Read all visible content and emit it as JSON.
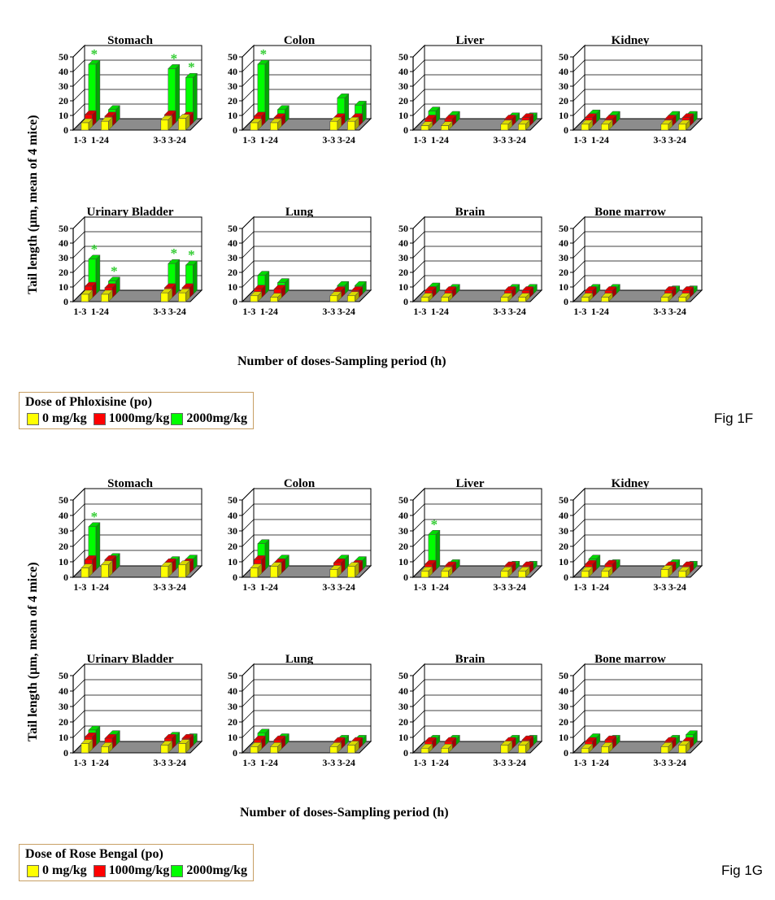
{
  "figures": [
    {
      "figure_label": "Fig 1F",
      "y_axis_label": "Tail length (µm, mean of 4 mice)",
      "x_axis_label": "Number of doses-Sampling period (h)",
      "legend": {
        "title": "Dose of Phloxisine (po)",
        "items": [
          {
            "label": "0 mg/kg",
            "color": "#ffff00"
          },
          {
            "label": "1000mg/kg",
            "color": "#ff0000"
          },
          {
            "label": "2000mg/kg",
            "color": "#00ff00"
          }
        ]
      }
    },
    {
      "figure_label": "Fig 1G",
      "y_axis_label": "Tail length (µm, mean of 4 mice)",
      "x_axis_label": "Number of doses-Sampling period (h)",
      "legend": {
        "title": "Dose of Rose Bengal (po)",
        "items": [
          {
            "label": "0 mg/kg",
            "color": "#ffff00"
          },
          {
            "label": "1000mg/kg",
            "color": "#ff0000"
          },
          {
            "label": "2000mg/kg",
            "color": "#00ff00"
          }
        ]
      }
    }
  ],
  "chart_data": [
    {
      "figure": "Fig 1F",
      "type": "bar",
      "title": "Stomach",
      "categories": [
        "1-3",
        "1-24",
        "3-3",
        "3-24"
      ],
      "ylim": [
        0,
        50
      ],
      "yticks": [
        0,
        10,
        20,
        30,
        40,
        50
      ],
      "series": [
        {
          "name": "0 mg/kg",
          "values": [
            5,
            6,
            7,
            8
          ]
        },
        {
          "name": "1000mg/kg",
          "values": [
            8,
            7,
            8,
            7
          ]
        },
        {
          "name": "2000mg/kg",
          "values": [
            40,
            9,
            37,
            31
          ]
        }
      ],
      "significant": [
        [
          2,
          0
        ],
        [
          2,
          2
        ],
        [
          2,
          3
        ]
      ],
      "annotation": "*"
    },
    {
      "figure": "Fig 1F",
      "type": "bar",
      "title": "Colon",
      "categories": [
        "1-3",
        "1-24",
        "3-3",
        "3-24"
      ],
      "ylim": [
        0,
        50
      ],
      "yticks": [
        0,
        10,
        "20",
        30,
        40,
        50
      ],
      "series": [
        {
          "name": "0 mg/kg",
          "values": [
            5,
            5,
            6,
            6
          ]
        },
        {
          "name": "1000mg/kg",
          "values": [
            7,
            6,
            6,
            6
          ]
        },
        {
          "name": "2000mg/kg",
          "values": [
            40,
            9,
            17,
            12
          ]
        }
      ],
      "significant": [
        [
          2,
          0
        ]
      ],
      "annotation": "*"
    },
    {
      "figure": "Fig 1F",
      "type": "bar",
      "title": "Liver",
      "categories": [
        "1-3",
        "1-24",
        "3-3",
        "3-24"
      ],
      "ylim": [
        0,
        50
      ],
      "yticks": [
        0,
        10,
        20,
        30,
        40,
        50
      ],
      "series": [
        {
          "name": "0 mg/kg",
          "values": [
            3,
            3,
            4,
            4
          ]
        },
        {
          "name": "1000mg/kg",
          "values": [
            5,
            5,
            5,
            6
          ]
        },
        {
          "name": "2000mg/kg",
          "values": [
            8,
            5,
            4,
            4
          ]
        }
      ]
    },
    {
      "figure": "Fig 1F",
      "type": "bar",
      "title": "Kidney",
      "categories": [
        "1-3",
        "1-24",
        "3-3",
        "3-24"
      ],
      "ylim": [
        0,
        50
      ],
      "yticks": [
        "0",
        10,
        20,
        30,
        40,
        50
      ],
      "series": [
        {
          "name": "0 mg/kg",
          "values": [
            4,
            4,
            4,
            4
          ]
        },
        {
          "name": "1000mg/kg",
          "values": [
            6,
            5,
            5,
            6
          ]
        },
        {
          "name": "2000mg/kg",
          "values": [
            6,
            5,
            5,
            5
          ]
        }
      ]
    },
    {
      "figure": "Fig 1F",
      "type": "bar",
      "title": "Urinary Bladder",
      "categories": [
        "1-3",
        "1-24",
        "3-3",
        "3-24"
      ],
      "ylim": [
        0,
        50
      ],
      "yticks": [
        0,
        10,
        20,
        30,
        40,
        50
      ],
      "series": [
        {
          "name": "0 mg/kg",
          "values": [
            5,
            5,
            6,
            6
          ]
        },
        {
          "name": "1000mg/kg",
          "values": [
            8,
            7,
            7,
            7
          ]
        },
        {
          "name": "2000mg/kg",
          "values": [
            24,
            9,
            21,
            20
          ]
        }
      ],
      "significant": [
        [
          2,
          0
        ],
        [
          2,
          1
        ],
        [
          2,
          2
        ],
        [
          2,
          3
        ]
      ],
      "annotation": "*"
    },
    {
      "figure": "Fig 1F",
      "type": "bar",
      "title": "Lung",
      "categories": [
        "1-3",
        "1-24",
        "3-3",
        "3-24"
      ],
      "ylim": [
        0,
        50
      ],
      "yticks": [
        0,
        10,
        20,
        30,
        40,
        50
      ],
      "series": [
        {
          "name": "0 mg/kg",
          "values": [
            4,
            3,
            4,
            4
          ]
        },
        {
          "name": "1000mg/kg",
          "values": [
            6,
            6,
            5,
            5
          ]
        },
        {
          "name": "2000mg/kg",
          "values": [
            13,
            8,
            6,
            6
          ]
        }
      ]
    },
    {
      "figure": "Fig 1F",
      "type": "bar",
      "title": "Brain",
      "categories": [
        "1-3",
        "1-24",
        "3-3",
        "3-24"
      ],
      "ylim": [
        0,
        50
      ],
      "yticks": [
        0,
        10,
        20,
        30,
        40,
        50
      ],
      "series": [
        {
          "name": "0 mg/kg",
          "values": [
            3,
            3,
            3,
            3
          ]
        },
        {
          "name": "1000mg/kg",
          "values": [
            5,
            5,
            5,
            5
          ]
        },
        {
          "name": "2000mg/kg",
          "values": [
            5,
            4,
            4,
            4
          ]
        }
      ]
    },
    {
      "figure": "Fig 1F",
      "type": "bar",
      "title": "Bone marrow",
      "categories": [
        "1-3",
        "1-24",
        "3-3",
        "3-24"
      ],
      "ylim": [
        0,
        50
      ],
      "yticks": [
        0,
        10,
        20,
        30,
        40,
        50
      ],
      "series": [
        {
          "name": "0 mg/kg",
          "values": [
            3,
            3,
            3,
            3
          ]
        },
        {
          "name": "1000mg/kg",
          "values": [
            5,
            5,
            5,
            5
          ]
        },
        {
          "name": "2000mg/kg",
          "values": [
            4,
            4,
            3,
            3
          ]
        }
      ]
    },
    {
      "figure": "Fig 1G",
      "type": "bar",
      "title": "Stomach",
      "categories": [
        "1-3",
        "1-24",
        "3-3",
        "3-24"
      ],
      "ylim": [
        0,
        50
      ],
      "yticks": [
        0,
        10,
        20,
        30,
        40,
        50
      ],
      "series": [
        {
          "name": "0 mg/kg",
          "values": [
            6,
            8,
            7,
            8
          ]
        },
        {
          "name": "1000mg/kg",
          "values": [
            9,
            9,
            7,
            7
          ]
        },
        {
          "name": "2000mg/kg",
          "values": [
            28,
            8,
            6,
            7
          ]
        }
      ],
      "significant": [
        [
          2,
          0
        ]
      ],
      "annotation": "*"
    },
    {
      "figure": "Fig 1G",
      "type": "bar",
      "title": "Colon",
      "categories": [
        "1-3",
        "1-24",
        "3-3",
        "3-24"
      ],
      "ylim": [
        0,
        50
      ],
      "yticks": [
        0,
        10,
        20,
        30,
        40,
        50
      ],
      "series": [
        {
          "name": "0 mg/kg",
          "values": [
            6,
            7,
            5,
            7
          ]
        },
        {
          "name": "1000mg/kg",
          "values": [
            9,
            7,
            7,
            6
          ]
        },
        {
          "name": "2000mg/kg",
          "values": [
            17,
            7,
            7,
            6
          ]
        }
      ]
    },
    {
      "figure": "Fig 1G",
      "type": "bar",
      "title": "Liver",
      "categories": [
        "1-3",
        "1-24",
        "3-3",
        "3-24"
      ],
      "ylim": [
        0,
        50
      ],
      "yticks": [
        0,
        10,
        20,
        30,
        40,
        50
      ],
      "series": [
        {
          "name": "0 mg/kg",
          "values": [
            4,
            4,
            4,
            4
          ]
        },
        {
          "name": "1000mg/kg",
          "values": [
            6,
            5,
            5,
            5
          ]
        },
        {
          "name": "2000mg/kg",
          "values": [
            23,
            4,
            3,
            3
          ]
        }
      ],
      "significant": [
        [
          2,
          0
        ]
      ],
      "annotation": "*"
    },
    {
      "figure": "Fig 1G",
      "type": "bar",
      "title": "Kidney",
      "categories": [
        "1-3",
        "1-24",
        "3-3",
        "3-24"
      ],
      "ylim": [
        0,
        50
      ],
      "yticks": [
        0,
        10,
        20,
        30,
        40,
        50
      ],
      "series": [
        {
          "name": "0 mg/kg",
          "values": [
            4,
            4,
            5,
            4
          ]
        },
        {
          "name": "1000mg/kg",
          "values": [
            6,
            6,
            5,
            5
          ]
        },
        {
          "name": "2000mg/kg",
          "values": [
            7,
            4,
            4,
            3
          ]
        }
      ]
    },
    {
      "figure": "Fig 1G",
      "type": "bar",
      "title": "Urinary Bladder",
      "categories": [
        "1-3",
        "1-24",
        "3-3",
        "3-24"
      ],
      "ylim": [
        0,
        50
      ],
      "yticks": [
        0,
        10,
        20,
        30,
        40,
        50
      ],
      "series": [
        {
          "name": "0 mg/kg",
          "values": [
            6,
            4,
            5,
            6
          ]
        },
        {
          "name": "1000mg/kg",
          "values": [
            8,
            7,
            7,
            7
          ]
        },
        {
          "name": "2000mg/kg",
          "values": [
            10,
            7,
            6,
            5
          ]
        }
      ]
    },
    {
      "figure": "Fig 1G",
      "type": "bar",
      "title": "Lung",
      "categories": [
        "1-3",
        "1-24",
        "3-3",
        "3-24"
      ],
      "ylim": [
        0,
        50
      ],
      "yticks": [
        0,
        10,
        20,
        30,
        40,
        50
      ],
      "series": [
        {
          "name": "0 mg/kg",
          "values": [
            4,
            4,
            4,
            5
          ]
        },
        {
          "name": "1000mg/kg",
          "values": [
            6,
            6,
            5,
            5
          ]
        },
        {
          "name": "2000mg/kg",
          "values": [
            8,
            5,
            4,
            4
          ]
        }
      ]
    },
    {
      "figure": "Fig 1G",
      "type": "bar",
      "title": "Brain",
      "categories": [
        "1-3",
        "1-24",
        "3-3",
        "3-24"
      ],
      "ylim": [
        0,
        50
      ],
      "yticks": [
        0,
        10,
        20,
        30,
        40,
        50
      ],
      "series": [
        {
          "name": "0 mg/kg",
          "values": [
            3,
            3,
            5,
            5
          ]
        },
        {
          "name": "1000mg/kg",
          "values": [
            5,
            5,
            5,
            6
          ]
        },
        {
          "name": "2000mg/kg",
          "values": [
            4,
            4,
            4,
            4
          ]
        }
      ]
    },
    {
      "figure": "Fig 1G",
      "type": "bar",
      "title": "Bone marrow",
      "categories": [
        "1-3",
        "1-24",
        "3-3",
        "3-24"
      ],
      "ylim": [
        0,
        50
      ],
      "yticks": [
        0,
        10,
        20,
        30,
        40,
        50
      ],
      "series": [
        {
          "name": "0 mg/kg",
          "values": [
            3,
            4,
            4,
            5
          ]
        },
        {
          "name": "1000mg/kg",
          "values": [
            5,
            6,
            5,
            5
          ]
        },
        {
          "name": "2000mg/kg",
          "values": [
            5,
            4,
            4,
            7
          ]
        }
      ]
    }
  ]
}
